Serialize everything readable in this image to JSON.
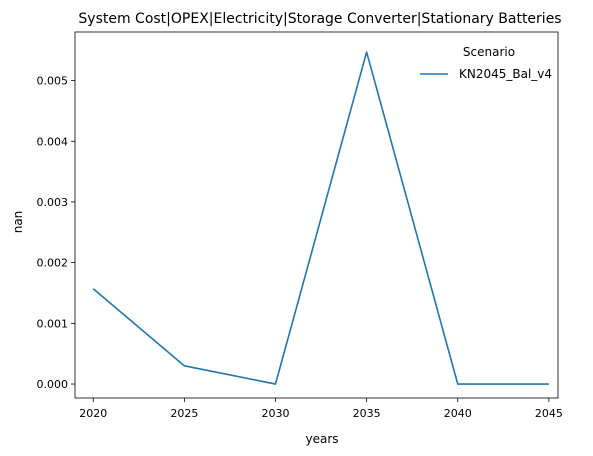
{
  "chart_data": {
    "type": "line",
    "title": "System Cost|OPEX|Electricity|Storage Converter|Stationary Batteries",
    "xlabel": "years",
    "ylabel": "nan",
    "x": [
      2020,
      2025,
      2030,
      2035,
      2040,
      2045
    ],
    "x_ticks": [
      "2020",
      "2025",
      "2030",
      "2035",
      "2040",
      "2045"
    ],
    "y_ticks": [
      "0.000",
      "0.001",
      "0.002",
      "0.003",
      "0.004",
      "0.005"
    ],
    "xlim": [
      2019,
      2045.5
    ],
    "ylim": [
      -0.00023,
      0.0058
    ],
    "grid": false,
    "legend": {
      "title": "Scenario",
      "position": "top-right"
    },
    "series": [
      {
        "name": "KN2045_Bal_v4",
        "color": "#1f77b4",
        "values": [
          0.00157,
          0.0003,
          0.0,
          0.00547,
          0.0,
          0.0
        ]
      }
    ]
  }
}
